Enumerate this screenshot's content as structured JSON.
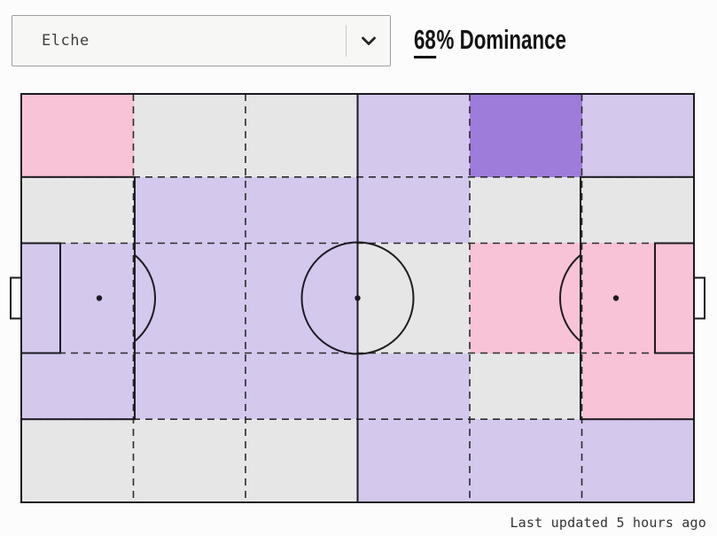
{
  "header": {
    "team_selector": {
      "value": "Elche"
    },
    "dominance": {
      "value": "68",
      "suffix": "% Dominance"
    }
  },
  "footer": {
    "last_updated": "Last updated 5 hours ago"
  },
  "colors": {
    "pitch_line": "#1c1a20",
    "grid_dash": "#2b2b2b",
    "accent_underline": "#141414"
  },
  "chart_data": {
    "type": "heatmap",
    "subtype": "football-pitch-zone-dominance",
    "team": "Elche",
    "dominance_percent": 68,
    "grid": {
      "rows": 5,
      "cols": 6
    },
    "palette": {
      "purple_strong": "#9e7cda",
      "purple": "#d4c8ed",
      "gray": "#e6e6e6",
      "pink": "#f8c2d7"
    },
    "cell_colors": [
      [
        "pink",
        "gray",
        "gray",
        "purple",
        "purple_strong",
        "purple"
      ],
      [
        "gray",
        "purple",
        "purple",
        "purple",
        "gray",
        "gray"
      ],
      [
        "purple",
        "purple",
        "purple",
        "gray",
        "pink",
        "pink"
      ],
      [
        "purple",
        "purple",
        "purple",
        "purple",
        "gray",
        "pink"
      ],
      [
        "gray",
        "gray",
        "gray",
        "purple",
        "purple",
        "purple"
      ]
    ]
  }
}
